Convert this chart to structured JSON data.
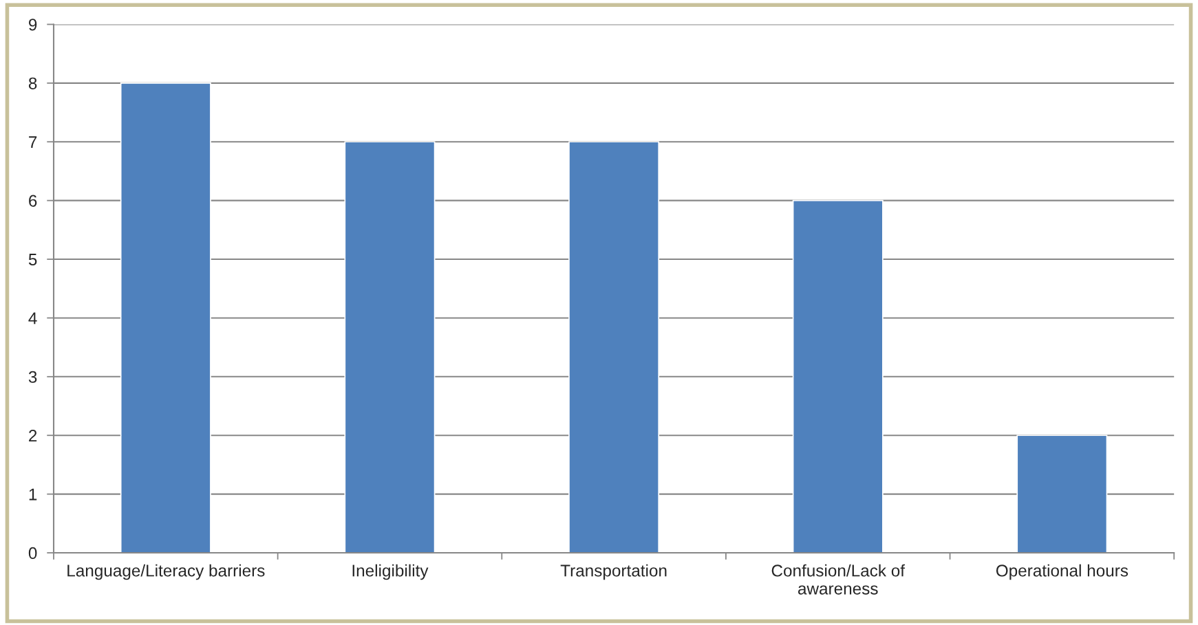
{
  "chart_data": {
    "type": "bar",
    "categories": [
      "Language/Literacy barriers",
      "Ineligibility",
      "Transportation",
      "Confusion/Lack of\nawareness",
      "Operational hours"
    ],
    "values": [
      8,
      7,
      7,
      6,
      2
    ],
    "color": "#4f81bd",
    "ylim": [
      0,
      9
    ],
    "yticks": [
      0,
      1,
      2,
      3,
      4,
      5,
      6,
      7,
      8,
      9
    ],
    "grid": "y"
  }
}
